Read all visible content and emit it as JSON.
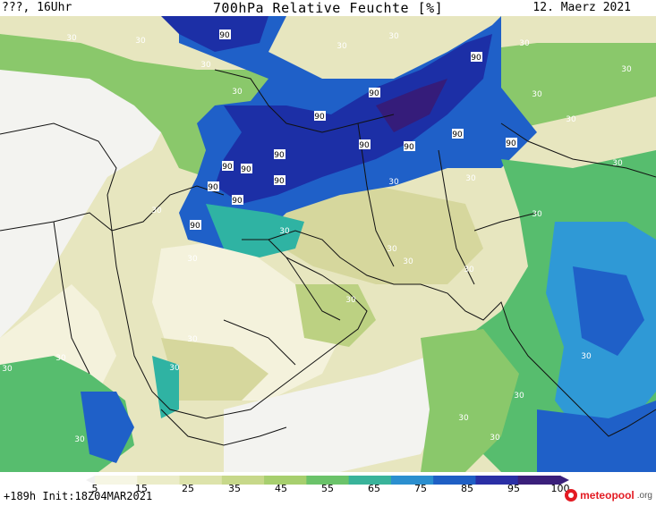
{
  "header": {
    "left": "???, 16Uhr",
    "title": "700hPa Relative Feuchte [%]",
    "date": "12. Maerz 2021"
  },
  "footer": {
    "forecast": "+189h Init:18Z04MAR2021",
    "logo_main": "meteopool",
    "logo_tld": ".org"
  },
  "legend": {
    "labels": [
      "5",
      "15",
      "25",
      "35",
      "45",
      "55",
      "65",
      "75",
      "85",
      "95",
      "100"
    ],
    "colors": [
      "#f0f0f0",
      "#f6f6e4",
      "#ebecc8",
      "#dde3ab",
      "#c7d88a",
      "#a7cf6e",
      "#6bc36a",
      "#39b39a",
      "#2b8fcf",
      "#1f5fc4",
      "#2a2fa5",
      "#3a1f7a"
    ]
  },
  "map": {
    "colors": {
      "very_dry": "#f3f3f0",
      "dry": "#f4f2dc",
      "olive_light": "#e7e6bf",
      "olive": "#d6d79d",
      "yellowgreen": "#bcd182",
      "green": "#8ac86b",
      "green2": "#57bd6e",
      "teal": "#2fb3a3",
      "lightblue": "#2f99d6",
      "blue": "#1f60c8",
      "darkblue": "#1c2fa6",
      "purple": "#351c7a",
      "border": "#111111"
    },
    "isolines": [
      "30",
      "30",
      "30",
      "30",
      "30",
      "30",
      "30",
      "30",
      "30",
      "30",
      "30",
      "30",
      "30",
      "30",
      "30",
      "30",
      "30",
      "30",
      "30",
      "30",
      "30",
      "30",
      "30",
      "30",
      "30",
      "30",
      "30",
      "30",
      "30",
      "30",
      "90",
      "90",
      "90",
      "90",
      "90",
      "90",
      "90",
      "90",
      "90",
      "90",
      "90",
      "90",
      "90",
      "90",
      "90"
    ]
  }
}
